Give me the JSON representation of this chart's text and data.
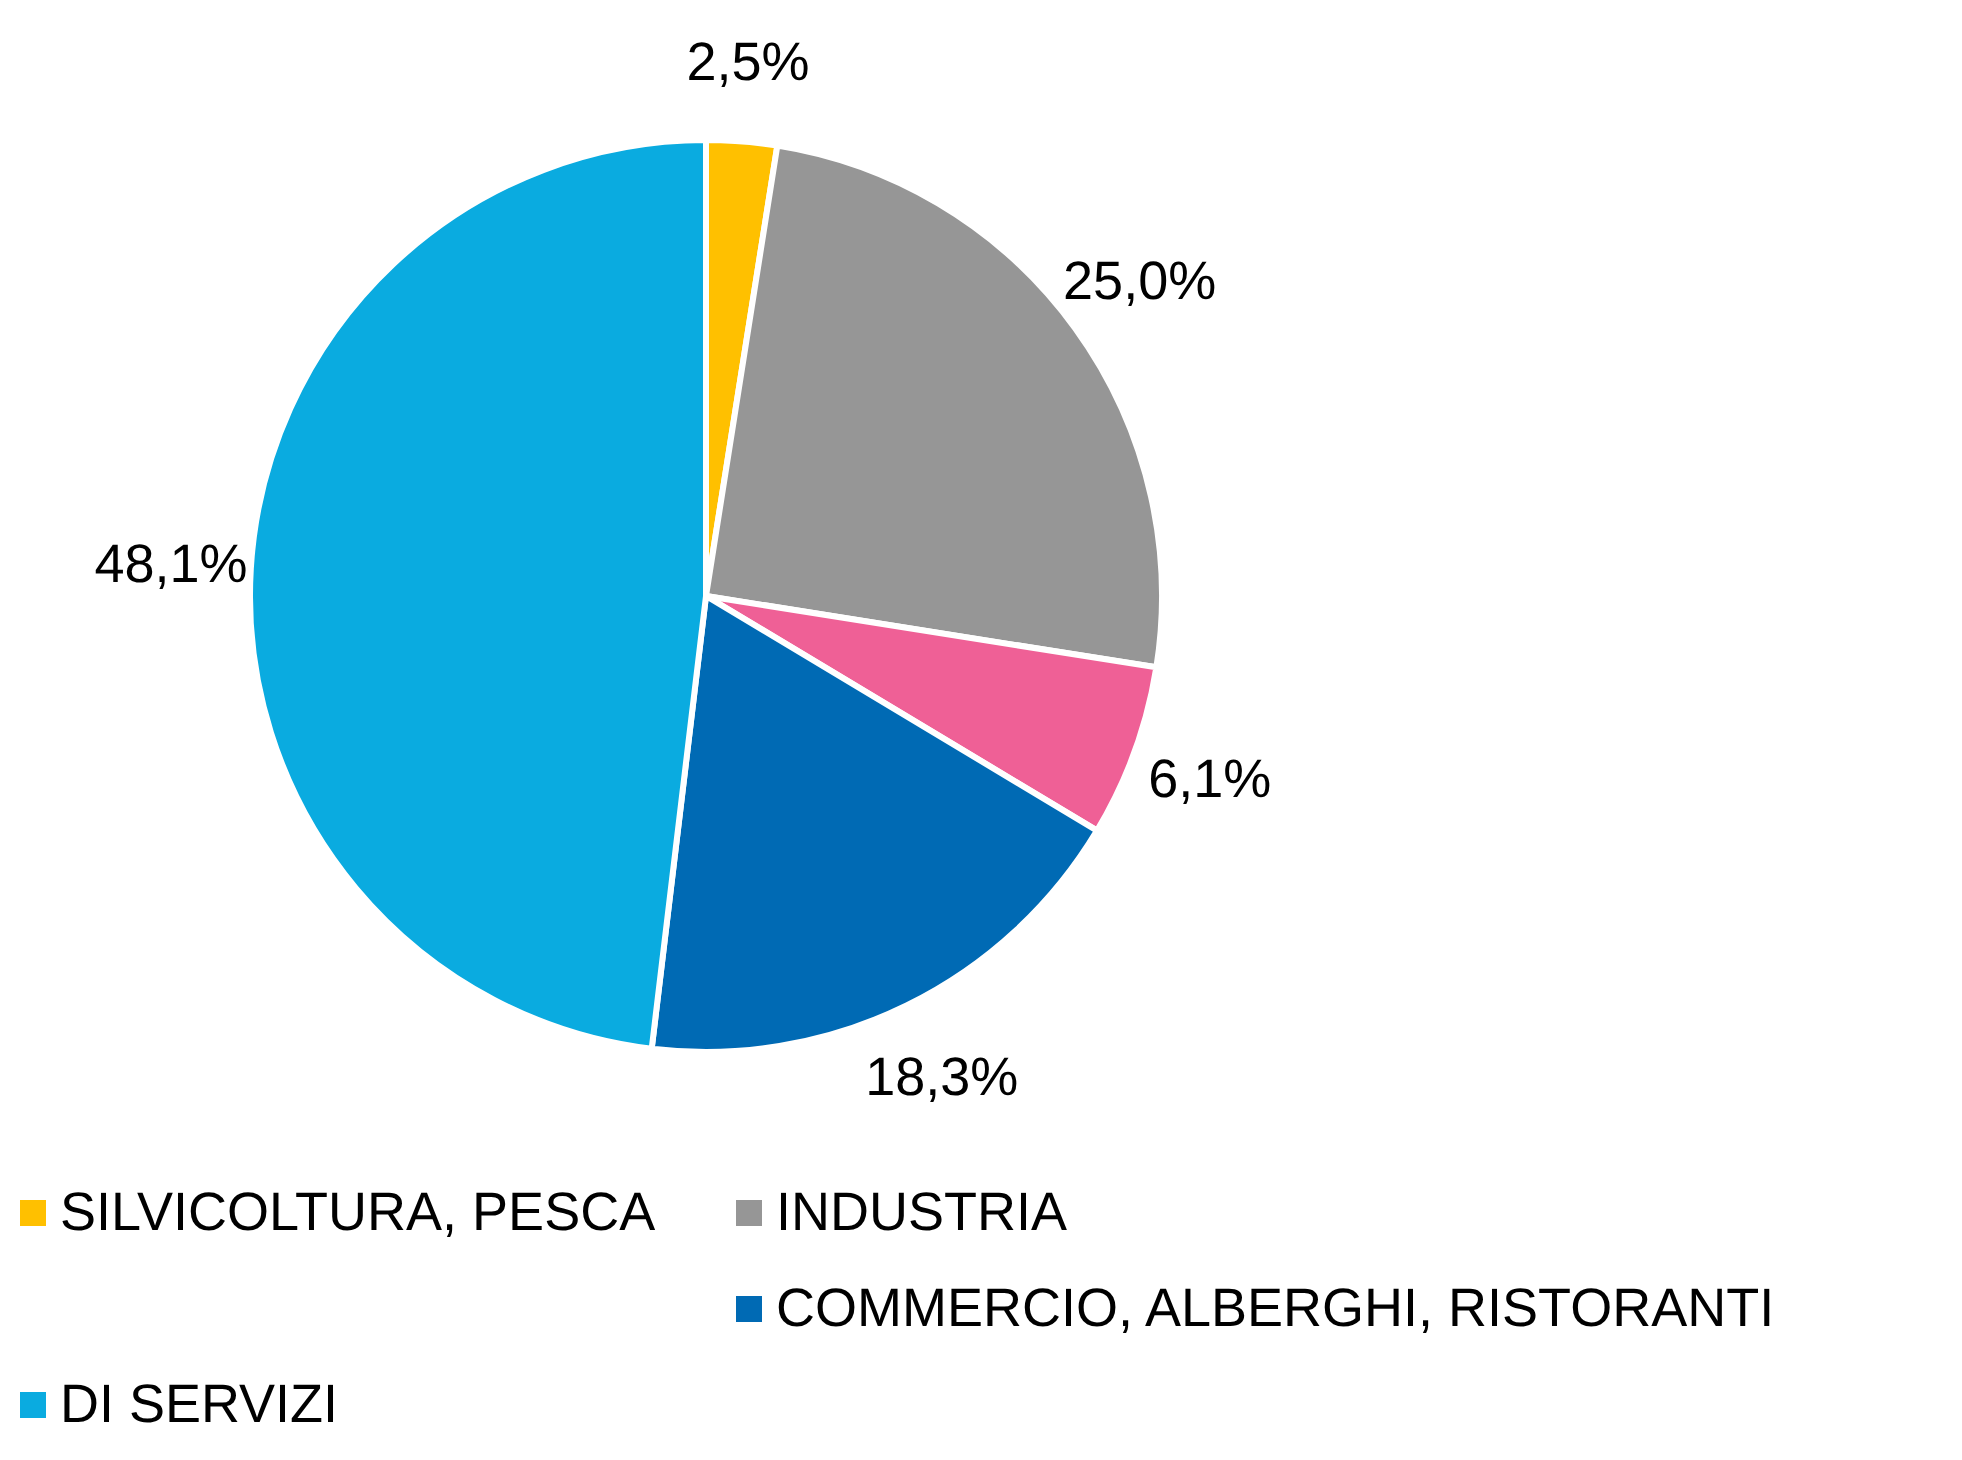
{
  "chart_data": {
    "type": "pie",
    "categories": [
      "SILVICOLTURA, PESCA",
      "INDUSTRIA",
      null,
      "COMMERCIO, ALBERGHI, RISTORANTI",
      "DI SERVIZI"
    ],
    "values": [
      2.5,
      25.0,
      6.1,
      18.3,
      48.1
    ],
    "colors": [
      "#ffc000",
      "#969696",
      "#ef6096",
      "#006ab4",
      "#0aabe0"
    ],
    "value_labels": [
      "2,5%",
      "25,0%",
      "6,1%",
      "18,3%",
      "48,1%"
    ],
    "legend": "bottom"
  }
}
